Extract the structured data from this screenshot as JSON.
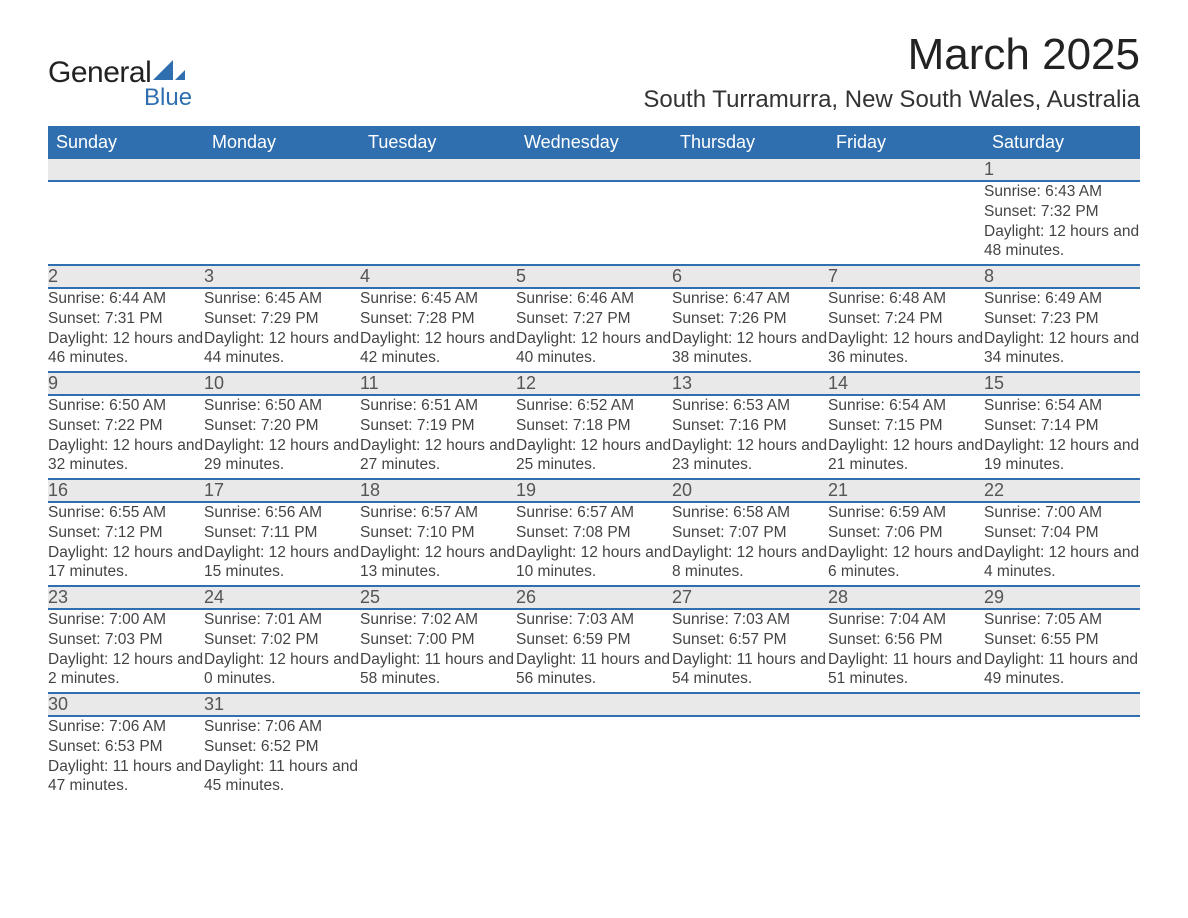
{
  "logo": {
    "text_general": "General",
    "text_blue": "Blue",
    "sail_color": "#2f6fb0"
  },
  "title": "March 2025",
  "location": "South Turramurra, New South Wales, Australia",
  "colors": {
    "header_bg": "#2f6fb0",
    "header_text": "#ffffff",
    "daynum_bg": "#e9e9e9",
    "border": "#2f6fb0",
    "body_text": "#444444"
  },
  "weekdays": [
    "Sunday",
    "Monday",
    "Tuesday",
    "Wednesday",
    "Thursday",
    "Friday",
    "Saturday"
  ],
  "weeks": [
    [
      null,
      null,
      null,
      null,
      null,
      null,
      {
        "n": "1",
        "sr": "6:43 AM",
        "ss": "7:32 PM",
        "dl": "12 hours and 48 minutes."
      }
    ],
    [
      {
        "n": "2",
        "sr": "6:44 AM",
        "ss": "7:31 PM",
        "dl": "12 hours and 46 minutes."
      },
      {
        "n": "3",
        "sr": "6:45 AM",
        "ss": "7:29 PM",
        "dl": "12 hours and 44 minutes."
      },
      {
        "n": "4",
        "sr": "6:45 AM",
        "ss": "7:28 PM",
        "dl": "12 hours and 42 minutes."
      },
      {
        "n": "5",
        "sr": "6:46 AM",
        "ss": "7:27 PM",
        "dl": "12 hours and 40 minutes."
      },
      {
        "n": "6",
        "sr": "6:47 AM",
        "ss": "7:26 PM",
        "dl": "12 hours and 38 minutes."
      },
      {
        "n": "7",
        "sr": "6:48 AM",
        "ss": "7:24 PM",
        "dl": "12 hours and 36 minutes."
      },
      {
        "n": "8",
        "sr": "6:49 AM",
        "ss": "7:23 PM",
        "dl": "12 hours and 34 minutes."
      }
    ],
    [
      {
        "n": "9",
        "sr": "6:50 AM",
        "ss": "7:22 PM",
        "dl": "12 hours and 32 minutes."
      },
      {
        "n": "10",
        "sr": "6:50 AM",
        "ss": "7:20 PM",
        "dl": "12 hours and 29 minutes."
      },
      {
        "n": "11",
        "sr": "6:51 AM",
        "ss": "7:19 PM",
        "dl": "12 hours and 27 minutes."
      },
      {
        "n": "12",
        "sr": "6:52 AM",
        "ss": "7:18 PM",
        "dl": "12 hours and 25 minutes."
      },
      {
        "n": "13",
        "sr": "6:53 AM",
        "ss": "7:16 PM",
        "dl": "12 hours and 23 minutes."
      },
      {
        "n": "14",
        "sr": "6:54 AM",
        "ss": "7:15 PM",
        "dl": "12 hours and 21 minutes."
      },
      {
        "n": "15",
        "sr": "6:54 AM",
        "ss": "7:14 PM",
        "dl": "12 hours and 19 minutes."
      }
    ],
    [
      {
        "n": "16",
        "sr": "6:55 AM",
        "ss": "7:12 PM",
        "dl": "12 hours and 17 minutes."
      },
      {
        "n": "17",
        "sr": "6:56 AM",
        "ss": "7:11 PM",
        "dl": "12 hours and 15 minutes."
      },
      {
        "n": "18",
        "sr": "6:57 AM",
        "ss": "7:10 PM",
        "dl": "12 hours and 13 minutes."
      },
      {
        "n": "19",
        "sr": "6:57 AM",
        "ss": "7:08 PM",
        "dl": "12 hours and 10 minutes."
      },
      {
        "n": "20",
        "sr": "6:58 AM",
        "ss": "7:07 PM",
        "dl": "12 hours and 8 minutes."
      },
      {
        "n": "21",
        "sr": "6:59 AM",
        "ss": "7:06 PM",
        "dl": "12 hours and 6 minutes."
      },
      {
        "n": "22",
        "sr": "7:00 AM",
        "ss": "7:04 PM",
        "dl": "12 hours and 4 minutes."
      }
    ],
    [
      {
        "n": "23",
        "sr": "7:00 AM",
        "ss": "7:03 PM",
        "dl": "12 hours and 2 minutes."
      },
      {
        "n": "24",
        "sr": "7:01 AM",
        "ss": "7:02 PM",
        "dl": "12 hours and 0 minutes."
      },
      {
        "n": "25",
        "sr": "7:02 AM",
        "ss": "7:00 PM",
        "dl": "11 hours and 58 minutes."
      },
      {
        "n": "26",
        "sr": "7:03 AM",
        "ss": "6:59 PM",
        "dl": "11 hours and 56 minutes."
      },
      {
        "n": "27",
        "sr": "7:03 AM",
        "ss": "6:57 PM",
        "dl": "11 hours and 54 minutes."
      },
      {
        "n": "28",
        "sr": "7:04 AM",
        "ss": "6:56 PM",
        "dl": "11 hours and 51 minutes."
      },
      {
        "n": "29",
        "sr": "7:05 AM",
        "ss": "6:55 PM",
        "dl": "11 hours and 49 minutes."
      }
    ],
    [
      {
        "n": "30",
        "sr": "7:06 AM",
        "ss": "6:53 PM",
        "dl": "11 hours and 47 minutes."
      },
      {
        "n": "31",
        "sr": "7:06 AM",
        "ss": "6:52 PM",
        "dl": "11 hours and 45 minutes."
      },
      null,
      null,
      null,
      null,
      null
    ]
  ],
  "labels": {
    "sunrise": "Sunrise: ",
    "sunset": "Sunset: ",
    "daylight": "Daylight: "
  }
}
